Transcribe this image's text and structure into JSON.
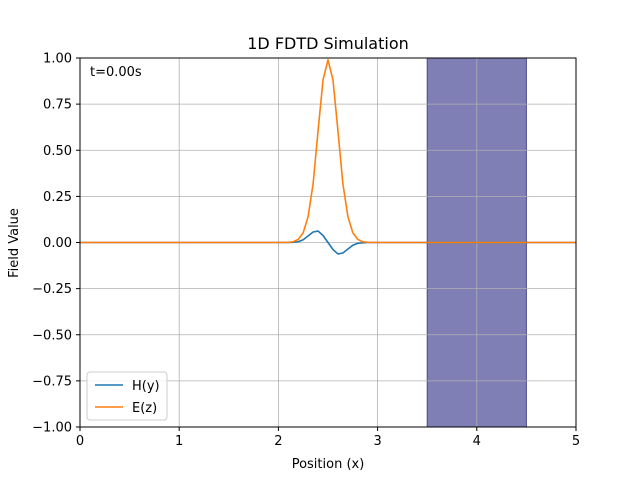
{
  "chart_data": {
    "type": "line",
    "title": "1D FDTD Simulation",
    "xlabel": "Position (x)",
    "ylabel": "Field Value",
    "xlim": [
      0,
      5
    ],
    "ylim": [
      -1.0,
      1.0
    ],
    "grid": true,
    "xticks": [
      0,
      1,
      2,
      3,
      4,
      5
    ],
    "xtick_labels": [
      "0",
      "1",
      "2",
      "3",
      "4",
      "5"
    ],
    "yticks": [
      -1.0,
      -0.75,
      -0.5,
      -0.25,
      0.0,
      0.25,
      0.5,
      0.75,
      1.0
    ],
    "ytick_labels": [
      "−1.00",
      "−0.75",
      "−0.50",
      "−0.25",
      "0.00",
      "0.25",
      "0.50",
      "0.75",
      "1.00"
    ],
    "annotation": "t=0.00s",
    "legend_position": "lower-left",
    "shaded_region": {
      "x_start": 3.5,
      "x_end": 4.5,
      "color": "#7f7fb6",
      "edge_color": "#4a4a8c"
    },
    "series": [
      {
        "name": "H(y)",
        "color": "#1f77b4",
        "x": [
          0,
          2.0,
          2.1,
          2.15,
          2.2,
          2.25,
          2.3,
          2.35,
          2.4,
          2.45,
          2.5,
          2.55,
          2.6,
          2.65,
          2.7,
          2.75,
          2.8,
          2.9,
          3.0,
          5.0
        ],
        "y": [
          0,
          0,
          0,
          0.001,
          0.004,
          0.015,
          0.036,
          0.057,
          0.062,
          0.038,
          0.0,
          -0.038,
          -0.062,
          -0.057,
          -0.036,
          -0.015,
          -0.004,
          0,
          0,
          0
        ]
      },
      {
        "name": "E(z)",
        "color": "#ff7f0e",
        "x": [
          0,
          2.0,
          2.1,
          2.15,
          2.2,
          2.25,
          2.3,
          2.35,
          2.4,
          2.45,
          2.5,
          2.55,
          2.6,
          2.65,
          2.7,
          2.75,
          2.8,
          2.85,
          2.9,
          3.0,
          5.0
        ],
        "y": [
          0,
          0,
          0.001,
          0.004,
          0.017,
          0.053,
          0.142,
          0.319,
          0.607,
          0.881,
          0.99,
          0.881,
          0.607,
          0.319,
          0.142,
          0.053,
          0.017,
          0.004,
          0.001,
          0,
          0
        ]
      }
    ]
  }
}
